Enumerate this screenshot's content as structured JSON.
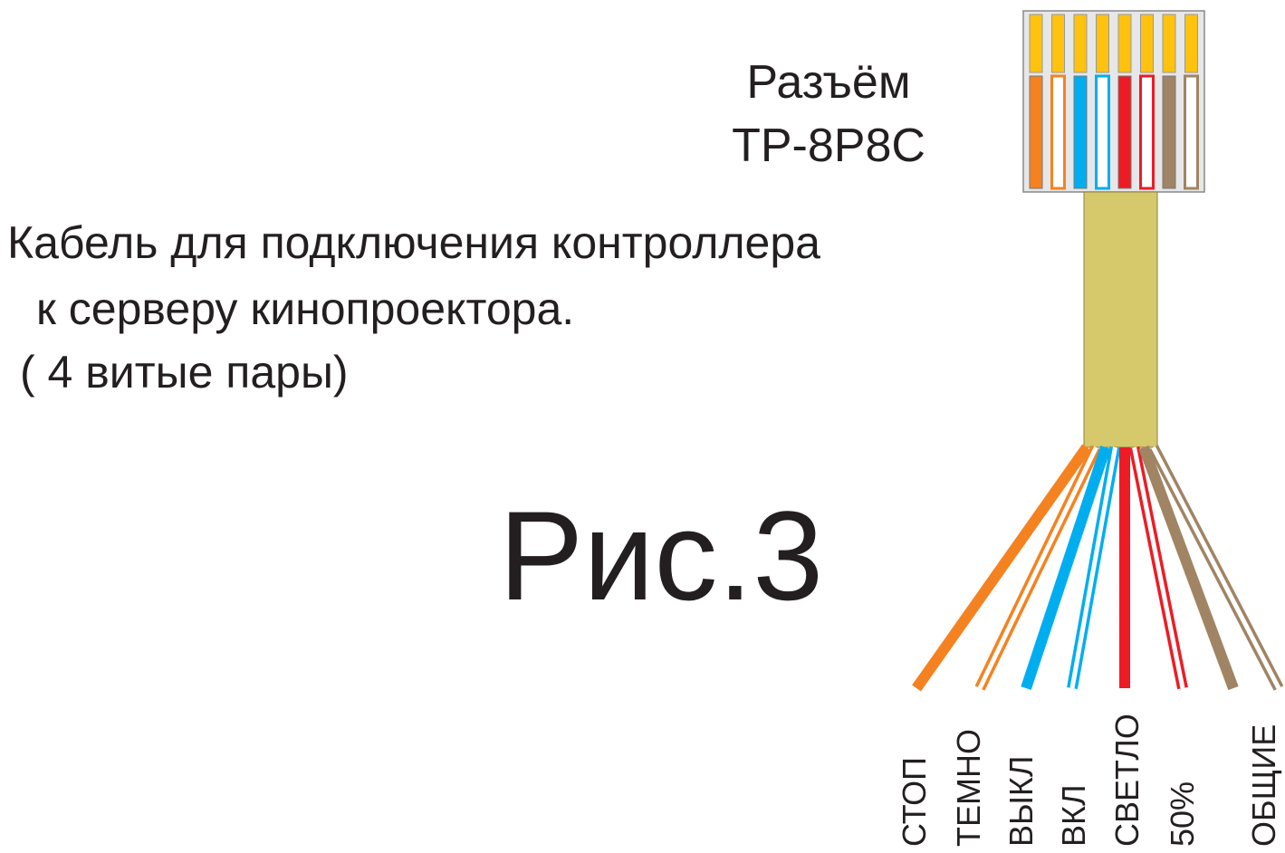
{
  "connector": {
    "title": "Разъём",
    "model": "ТР-8Р8С"
  },
  "caption": [
    "Кабель для подключения контроллера",
    "к серверу кинопроектора.",
    "( 4 витые пары)"
  ],
  "figure": "Рис.3",
  "wires": [
    "СТОП",
    "ТЕМНО",
    "ВЫКЛ",
    "ВКЛ",
    "СВЕТЛО",
    "50%",
    "ОБЩИЕ"
  ]
}
